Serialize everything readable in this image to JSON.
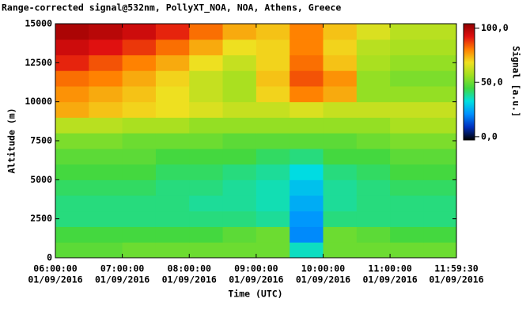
{
  "chart_data": {
    "type": "heatmap",
    "title": "Range-corrected signal@532nm, PollyXT_NOA, NOA, Athens, Greece",
    "xlabel": "Time (UTC)",
    "ylabel": "Altitude (m)",
    "colorbar_label": "Signal [a.u.]",
    "xlim": [
      6,
      11.991667
    ],
    "xticks": [
      {
        "value": 6,
        "label": "06:00:00"
      },
      {
        "value": 7,
        "label": "07:00:00"
      },
      {
        "value": 8,
        "label": "08:00:00"
      },
      {
        "value": 9,
        "label": "09:00:00"
      },
      {
        "value": 10,
        "label": "10:00:00"
      },
      {
        "value": 11,
        "label": "11:00:00"
      },
      {
        "value": 11.991667,
        "label": "11:59:30"
      }
    ],
    "xtick_dates": [
      "01/09/2016",
      "01/09/2016",
      "01/09/2016",
      "01/09/2016",
      "01/09/2016",
      "01/09/2016",
      "01/09/2016"
    ],
    "ylim": [
      0,
      15000
    ],
    "yticks": [
      0,
      2500,
      5000,
      7500,
      10000,
      12500,
      15000
    ],
    "clim": [
      -3,
      104
    ],
    "cticks": [
      {
        "value": 0,
        "label": "0,0"
      },
      {
        "value": 50,
        "label": "50,0"
      },
      {
        "value": 100,
        "label": "100,0"
      }
    ],
    "colormap": [
      "#000000",
      "#0030c0",
      "#0090ff",
      "#00e0e0",
      "#40d840",
      "#a0e020",
      "#f0e020",
      "#ff8000",
      "#e01010",
      "#900000"
    ],
    "x_edges": [
      6,
      6.5,
      7,
      7.5,
      8,
      8.5,
      9,
      9.5,
      10,
      10.5,
      11,
      11.5,
      11.991667
    ],
    "y_edges": [
      0,
      1000,
      2000,
      3000,
      4000,
      5000,
      6000,
      7000,
      8000,
      9000,
      10000,
      11000,
      12000,
      13000,
      14000,
      15000
    ],
    "z": [
      [
        48,
        48,
        50,
        50,
        50,
        50,
        50,
        35,
        50,
        50,
        50,
        50
      ],
      [
        45,
        45,
        45,
        45,
        45,
        48,
        50,
        20,
        50,
        48,
        45,
        45
      ],
      [
        40,
        40,
        40,
        40,
        40,
        40,
        38,
        22,
        40,
        40,
        40,
        40
      ],
      [
        40,
        40,
        40,
        40,
        38,
        38,
        36,
        25,
        38,
        40,
        40,
        40
      ],
      [
        42,
        42,
        42,
        40,
        40,
        38,
        36,
        28,
        38,
        40,
        42,
        42
      ],
      [
        45,
        45,
        45,
        42,
        42,
        40,
        38,
        32,
        40,
        42,
        45,
        45
      ],
      [
        48,
        48,
        48,
        45,
        45,
        45,
        42,
        40,
        45,
        45,
        48,
        48
      ],
      [
        52,
        52,
        50,
        50,
        50,
        48,
        48,
        48,
        48,
        50,
        52,
        52
      ],
      [
        60,
        60,
        58,
        58,
        55,
        55,
        55,
        55,
        55,
        55,
        58,
        58
      ],
      [
        75,
        72,
        70,
        68,
        65,
        62,
        62,
        65,
        62,
        62,
        62,
        62
      ],
      [
        78,
        75,
        72,
        68,
        62,
        58,
        70,
        80,
        75,
        55,
        55,
        55
      ],
      [
        82,
        80,
        75,
        70,
        62,
        58,
        72,
        85,
        78,
        55,
        52,
        52
      ],
      [
        90,
        85,
        80,
        75,
        68,
        62,
        70,
        82,
        72,
        58,
        55,
        55
      ],
      [
        95,
        92,
        88,
        82,
        75,
        68,
        70,
        80,
        70,
        60,
        58,
        58
      ],
      [
        100,
        98,
        95,
        90,
        82,
        75,
        72,
        80,
        72,
        65,
        60,
        60
      ]
    ]
  }
}
